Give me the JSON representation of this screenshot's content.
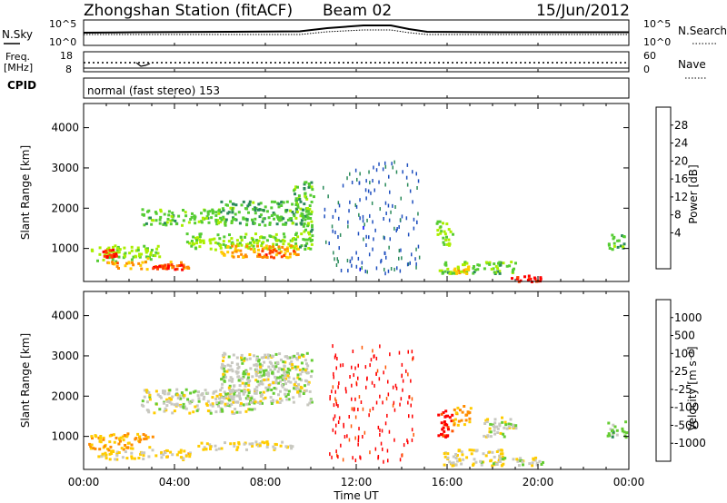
{
  "header": {
    "station": "Zhongshan Station (fitACF)",
    "beam": "Beam 02",
    "date": "15/Jun/2012"
  },
  "nsky_panel": {
    "left_label": "N.Sky",
    "right_label": "N.Search",
    "left_ticks": [
      "10^5",
      "10^0"
    ],
    "right_ticks": [
      "10^5",
      "10^0"
    ]
  },
  "freq_panel": {
    "left_label_1": "Freq.",
    "left_label_2": "[MHz]",
    "right_label": "Nave",
    "left_ticks": [
      "18",
      "8"
    ],
    "right_ticks": [
      "60",
      "0"
    ]
  },
  "cpid_panel": {
    "label": "CPID",
    "text": "normal (fast stereo) 153"
  },
  "x_axis": {
    "label": "Time UT",
    "ticks": [
      "00:00",
      "04:00",
      "08:00",
      "12:00",
      "16:00",
      "20:00",
      "00:00"
    ]
  },
  "power_panel": {
    "ylabel": "Slant Range [km]",
    "yticks": [
      "4000",
      "3000",
      "2000",
      "1000"
    ],
    "colorbar_label": "Power [dB]",
    "colorbar_ticks": [
      "28",
      "24",
      "20",
      "16",
      "12",
      "8",
      "4"
    ],
    "colorbar_colors": [
      "#ff0000",
      "#ff4000",
      "#ff8c00",
      "#ffcc00",
      "#aaee00",
      "#55cc33",
      "#2a8a5a",
      "#1f4fbf",
      "#0000ff"
    ]
  },
  "velocity_panel": {
    "ylabel": "Slant Range [km]",
    "yticks": [
      "4000",
      "3000",
      "2000",
      "1000"
    ],
    "colorbar_label": "Velocity [m s⁻¹]",
    "colorbar_ticks": [
      "1000",
      "500",
      "100",
      "25",
      "-25",
      "-100",
      "-500",
      "-1000"
    ],
    "colorbar_colors": [
      "#1f3fbf",
      "#2f6fb0",
      "#2f8a5a",
      "#66cc33",
      "#c8c8c0",
      "#ffcc00",
      "#ff8c00",
      "#ff5500",
      "#ff0000"
    ]
  },
  "chart_data": [
    {
      "type": "heatmap",
      "title": "Power [dB]",
      "xlabel": "Time UT",
      "ylabel": "Slant Range [km]",
      "xlim": [
        0,
        24
      ],
      "ylim": [
        180,
        4600
      ],
      "clim": [
        0,
        30
      ],
      "regions": [
        {
          "t0": 0.3,
          "t1": 3.3,
          "r0": 700,
          "r1": 1100,
          "value": 14
        },
        {
          "t0": 0.8,
          "t1": 1.4,
          "r0": 800,
          "r1": 1000,
          "value": 26
        },
        {
          "t0": 1.0,
          "t1": 4.6,
          "r0": 500,
          "r1": 700,
          "value": 21
        },
        {
          "t0": 3.0,
          "t1": 4.4,
          "r0": 500,
          "r1": 650,
          "value": 26
        },
        {
          "t0": 2.5,
          "t1": 6.2,
          "r0": 1600,
          "r1": 2000,
          "value": 12
        },
        {
          "t0": 4.5,
          "t1": 9.5,
          "r0": 1000,
          "r1": 1400,
          "value": 14
        },
        {
          "t0": 6.0,
          "t1": 9.5,
          "r0": 800,
          "r1": 1100,
          "value": 20
        },
        {
          "t0": 7.5,
          "t1": 9.2,
          "r0": 800,
          "r1": 1000,
          "value": 25
        },
        {
          "t0": 6.0,
          "t1": 9.8,
          "r0": 1600,
          "r1": 2200,
          "value": 11
        },
        {
          "t0": 9.2,
          "t1": 10.1,
          "r0": 1000,
          "r1": 2700,
          "value": 12
        },
        {
          "t0": 15.5,
          "t1": 16.2,
          "r0": 1100,
          "r1": 1700,
          "value": 13
        },
        {
          "t0": 15.6,
          "t1": 19.0,
          "r0": 400,
          "r1": 700,
          "value": 12
        },
        {
          "t0": 16.2,
          "t1": 16.9,
          "r0": 400,
          "r1": 600,
          "value": 18
        },
        {
          "t0": 18.7,
          "t1": 20.1,
          "r0": 200,
          "r1": 350,
          "value": 27
        },
        {
          "t0": 23.0,
          "t1": 23.8,
          "r0": 1000,
          "r1": 1400,
          "value": 12
        },
        {
          "t0": 10.5,
          "t1": 14.8,
          "r0": 400,
          "r1": 3200,
          "value": 6
        }
      ]
    },
    {
      "type": "heatmap",
      "title": "Velocity [m s⁻¹]",
      "xlabel": "Time UT",
      "ylabel": "Slant Range [km]",
      "xlim": [
        0,
        24
      ],
      "ylim": [
        180,
        4600
      ],
      "clim": [
        -1000,
        1000
      ],
      "regions": [
        {
          "t0": 0.2,
          "t1": 3.0,
          "r0": 700,
          "r1": 1100,
          "value": -300
        },
        {
          "t0": 0.6,
          "t1": 4.8,
          "r0": 450,
          "r1": 700,
          "value": -200
        },
        {
          "t0": 4.8,
          "t1": 9.2,
          "r0": 700,
          "r1": 900,
          "value": -150
        },
        {
          "t0": 2.5,
          "t1": 7.5,
          "r0": 1600,
          "r1": 2200,
          "value": 0
        },
        {
          "t0": 6.0,
          "t1": 10.0,
          "r0": 1800,
          "r1": 3100,
          "value": 10
        },
        {
          "t0": 7.5,
          "t1": 9.0,
          "r0": 2300,
          "r1": 2900,
          "value": 50
        },
        {
          "t0": 10.8,
          "t1": 14.5,
          "r0": 400,
          "r1": 3300,
          "value": -900
        },
        {
          "t0": 15.5,
          "t1": 16.2,
          "r0": 1000,
          "r1": 1700,
          "value": -900
        },
        {
          "t0": 16.2,
          "t1": 17.0,
          "r0": 1300,
          "r1": 1800,
          "value": -400
        },
        {
          "t0": 15.8,
          "t1": 18.5,
          "r0": 300,
          "r1": 700,
          "value": -150
        },
        {
          "t0": 17.0,
          "t1": 20.2,
          "r0": 300,
          "r1": 500,
          "value": 0
        },
        {
          "t0": 17.5,
          "t1": 19.0,
          "r0": 1000,
          "r1": 1500,
          "value": 0
        },
        {
          "t0": 23.0,
          "t1": 23.9,
          "r0": 1000,
          "r1": 1400,
          "value": 200
        }
      ]
    }
  ]
}
